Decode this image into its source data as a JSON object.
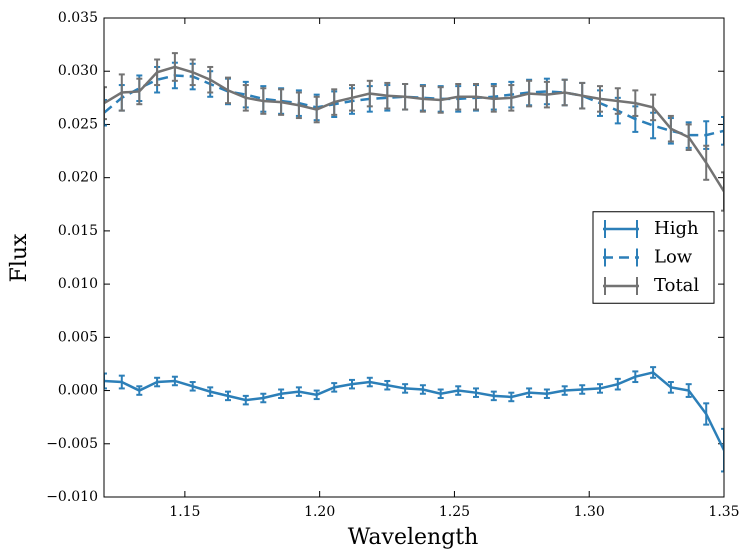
{
  "chart_data": {
    "type": "line",
    "xlabel": "Wavelength",
    "ylabel": "Flux",
    "x": [
      1.12,
      1.1266,
      1.1331,
      1.1397,
      1.1463,
      1.1529,
      1.1594,
      1.166,
      1.1726,
      1.1791,
      1.1857,
      1.1923,
      1.1989,
      1.2054,
      1.212,
      1.2186,
      1.2251,
      1.2317,
      1.2383,
      1.2449,
      1.2514,
      1.258,
      1.2646,
      1.2711,
      1.2777,
      1.2843,
      1.2909,
      1.2974,
      1.304,
      1.3106,
      1.3171,
      1.3237,
      1.3303,
      1.3369,
      1.3434,
      1.35
    ],
    "series": [
      {
        "name": "High",
        "color": "#2c7fb8",
        "dash": false,
        "values": [
          0.0009,
          0.0008,
          0.0,
          0.0008,
          0.0009,
          0.0004,
          -0.0001,
          -0.0005,
          -0.0009,
          -0.0007,
          -0.0003,
          -0.0001,
          -0.0004,
          0.0003,
          0.0006,
          0.0008,
          0.0005,
          0.0002,
          0.0001,
          -0.0003,
          0.0,
          -0.0002,
          -0.0005,
          -0.0006,
          -0.0002,
          -0.0003,
          0.0,
          0.0001,
          0.0002,
          0.0006,
          0.0013,
          0.0017,
          0.0003,
          0.0,
          -0.0022,
          -0.0056
        ],
        "errors": [
          0.0007,
          0.0006,
          0.0004,
          0.0004,
          0.0004,
          0.0004,
          0.0004,
          0.0004,
          0.0004,
          0.0004,
          0.0004,
          0.0004,
          0.0004,
          0.0004,
          0.0004,
          0.0004,
          0.0004,
          0.0004,
          0.0004,
          0.0004,
          0.0004,
          0.0004,
          0.0004,
          0.0004,
          0.0004,
          0.0004,
          0.0004,
          0.0004,
          0.0004,
          0.0005,
          0.0005,
          0.0005,
          0.0005,
          0.0006,
          0.001,
          0.002
        ]
      },
      {
        "name": "Low",
        "color": "#2c7fb8",
        "dash": true,
        "values": [
          0.0261,
          0.0275,
          0.0284,
          0.0292,
          0.0296,
          0.0295,
          0.0288,
          0.0281,
          0.0278,
          0.0274,
          0.0272,
          0.027,
          0.0266,
          0.0269,
          0.0272,
          0.0274,
          0.0275,
          0.0276,
          0.0275,
          0.0274,
          0.0274,
          0.0275,
          0.0276,
          0.0278,
          0.028,
          0.0281,
          0.028,
          0.0277,
          0.027,
          0.0263,
          0.0255,
          0.0249,
          0.0244,
          0.024,
          0.024,
          0.0244
        ],
        "errors": [
          0.0012,
          0.0012,
          0.0012,
          0.0012,
          0.0012,
          0.0012,
          0.0012,
          0.0012,
          0.0012,
          0.0012,
          0.0012,
          0.0012,
          0.0012,
          0.0012,
          0.0012,
          0.0012,
          0.0012,
          0.0012,
          0.0012,
          0.0012,
          0.0012,
          0.0012,
          0.0012,
          0.0012,
          0.0012,
          0.0012,
          0.0012,
          0.0012,
          0.0012,
          0.0012,
          0.0012,
          0.0012,
          0.0012,
          0.0012,
          0.0013,
          0.0013
        ]
      },
      {
        "name": "Total",
        "color": "#737373",
        "dash": false,
        "values": [
          0.027,
          0.028,
          0.0281,
          0.0299,
          0.0304,
          0.0299,
          0.0292,
          0.0282,
          0.0275,
          0.0272,
          0.0271,
          0.0268,
          0.0264,
          0.0271,
          0.0275,
          0.0279,
          0.0277,
          0.0276,
          0.0274,
          0.0273,
          0.0276,
          0.0276,
          0.0274,
          0.0275,
          0.0279,
          0.0278,
          0.028,
          0.0277,
          0.0274,
          0.0272,
          0.027,
          0.0266,
          0.0246,
          0.0238,
          0.0214,
          0.0187
        ],
        "errors": [
          0.0015,
          0.0017,
          0.0012,
          0.0012,
          0.0013,
          0.0012,
          0.0012,
          0.0012,
          0.0012,
          0.0012,
          0.0012,
          0.0012,
          0.0012,
          0.0012,
          0.0012,
          0.0012,
          0.0012,
          0.0012,
          0.0012,
          0.0012,
          0.0012,
          0.0012,
          0.0012,
          0.0012,
          0.0012,
          0.0012,
          0.0012,
          0.0012,
          0.0012,
          0.0012,
          0.0012,
          0.0012,
          0.0012,
          0.0012,
          0.0016,
          0.0018
        ]
      }
    ],
    "xlim": [
      1.12,
      1.35
    ],
    "xticks": [
      1.15,
      {
        "value": 1.2,
        "label": "1.20"
      },
      1.25,
      {
        "value": 1.3,
        "label": "1.30"
      },
      1.35
    ],
    "ylim": [
      -0.01,
      0.035
    ],
    "yticks": [
      {
        "value": -0.01,
        "label": "−0.010"
      },
      {
        "value": -0.005,
        "label": "−0.005"
      },
      {
        "value": 0,
        "label": "0.000"
      },
      0.005,
      {
        "value": 0.01,
        "label": "0.010"
      },
      0.015,
      {
        "value": 0.02,
        "label": "0.020"
      },
      0.025,
      {
        "value": 0.03,
        "label": "0.030"
      },
      0.035
    ],
    "legend": "center right",
    "grid": false
  }
}
